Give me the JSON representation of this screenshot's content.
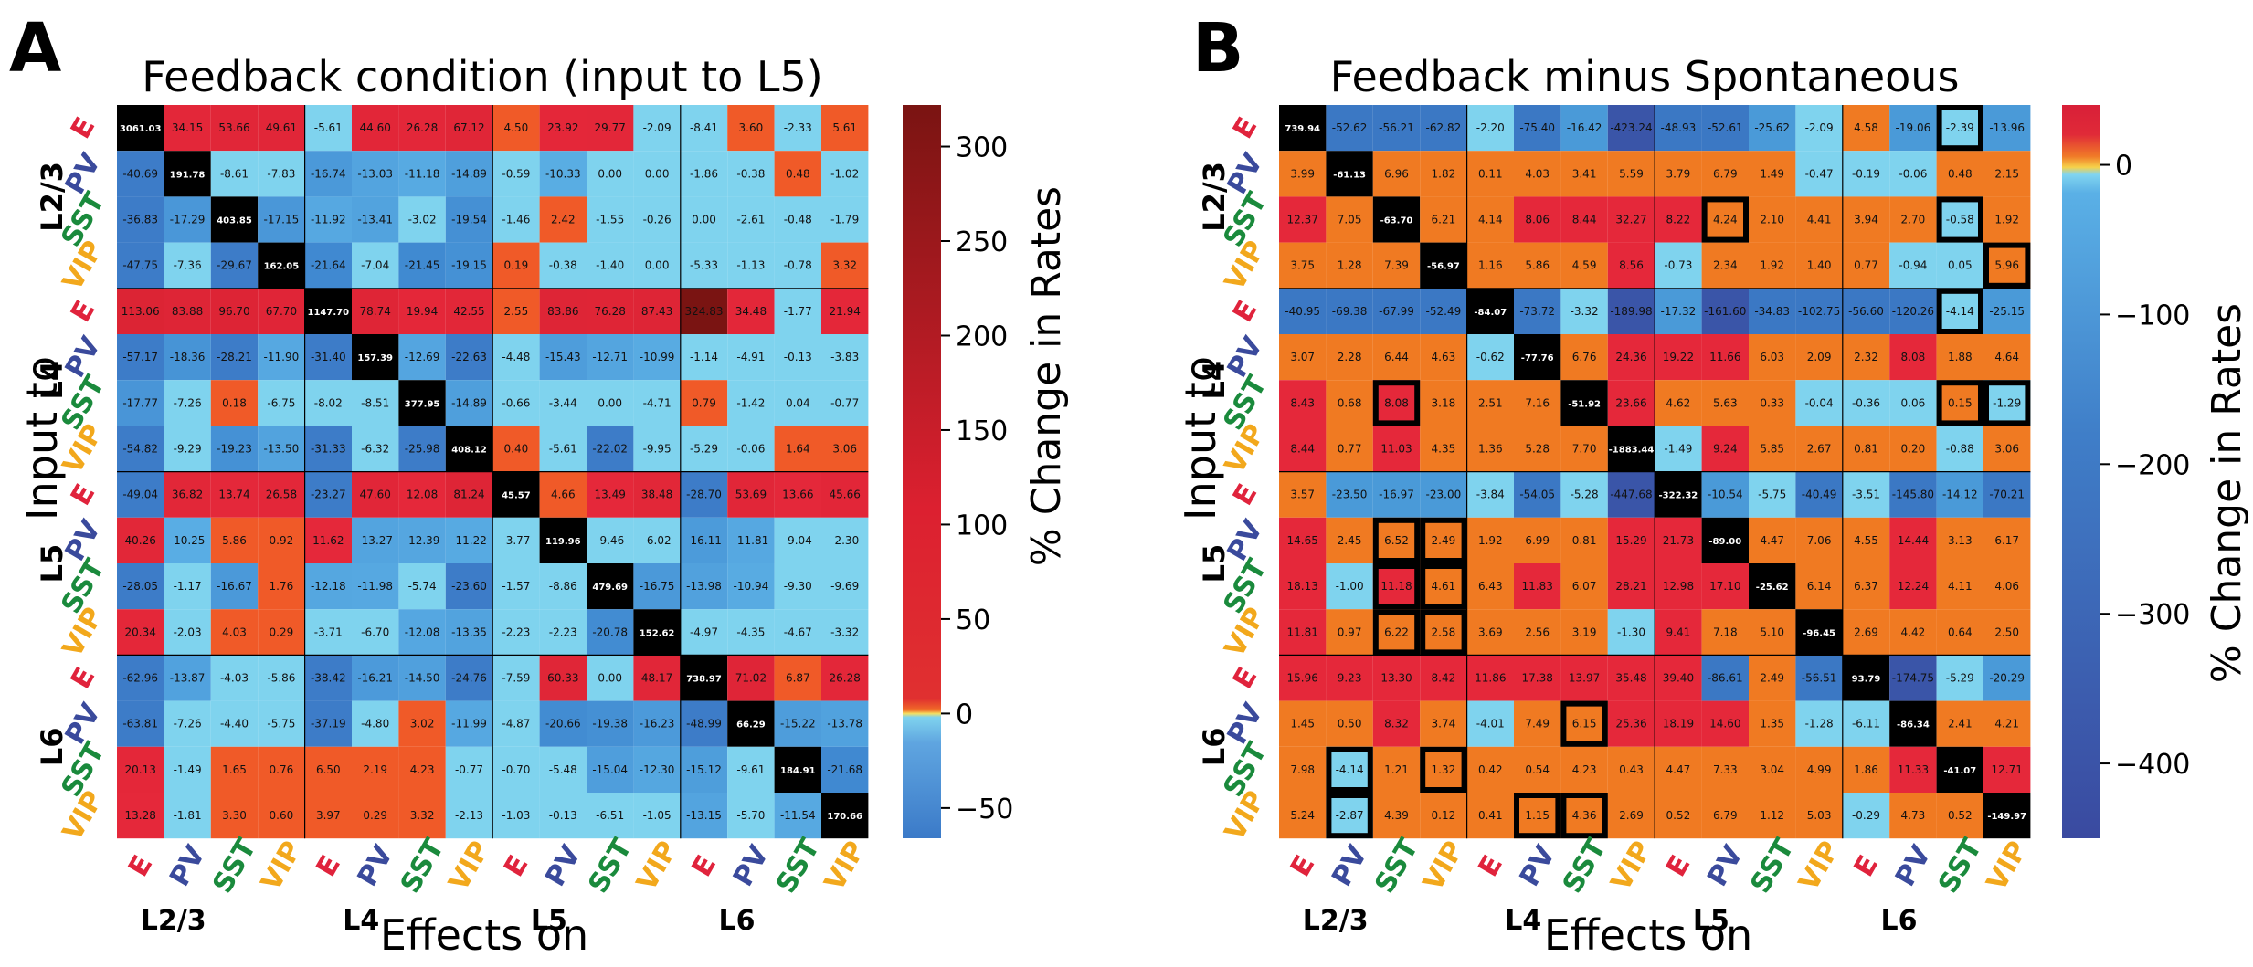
{
  "panel_letters": [
    "A",
    "B"
  ],
  "colorbar_label": "% Change in Rates",
  "row_axis_label": "Input to",
  "col_axis_label": "Effects on",
  "layers": [
    "L2/3",
    "L4",
    "L5",
    "L6"
  ],
  "cell_types": [
    "E",
    "PV",
    "SST",
    "VIP"
  ],
  "cell_type_colors": {
    "E": "#e0233c",
    "PV": "#3a4a9c",
    "SST": "#1a8a3c",
    "VIP": "#f2a81c"
  },
  "chart_data": [
    {
      "type": "heatmap",
      "title": "Feedback condition (input to L5)",
      "xlabel": "Effects on",
      "ylabel": "Input to",
      "colorbar": {
        "label": "% Change in Rates",
        "ticks": [
          -50,
          0,
          50,
          100,
          150,
          200,
          250,
          300
        ],
        "range": [
          -66,
          322
        ]
      },
      "highlighted_cells": [],
      "values": [
        [
          "3061.03",
          "34.15",
          "53.66",
          "49.61",
          "-5.61",
          "44.60",
          "26.28",
          "67.12",
          "4.50",
          "23.92",
          "29.77",
          "-2.09",
          "-8.41",
          "3.60",
          "-2.33",
          "5.61"
        ],
        [
          "-40.69",
          "191.78",
          "-8.61",
          "-7.83",
          "-16.74",
          "-13.03",
          "-11.18",
          "-14.89",
          "-0.59",
          "-10.33",
          "0.00",
          "0.00",
          "-1.86",
          "-0.38",
          "0.48",
          "-1.02"
        ],
        [
          "-36.83",
          "-17.29",
          "403.85",
          "-17.15",
          "-11.92",
          "-13.41",
          "-3.02",
          "-19.54",
          "-1.46",
          "2.42",
          "-1.55",
          "-0.26",
          "0.00",
          "-2.61",
          "-0.48",
          "-1.79"
        ],
        [
          "-47.75",
          "-7.36",
          "-29.67",
          "162.05",
          "-21.64",
          "-7.04",
          "-21.45",
          "-19.15",
          "0.19",
          "-0.38",
          "-1.40",
          "0.00",
          "-5.33",
          "-1.13",
          "-0.78",
          "3.32"
        ],
        [
          "113.06",
          "83.88",
          "96.70",
          "67.70",
          "1147.70",
          "78.74",
          "19.94",
          "42.55",
          "2.55",
          "83.86",
          "76.28",
          "87.43",
          "324.83",
          "34.48",
          "-1.77",
          "21.94"
        ],
        [
          "-57.17",
          "-18.36",
          "-28.21",
          "-11.90",
          "-31.40",
          "157.39",
          "-12.69",
          "-22.63",
          "-4.48",
          "-15.43",
          "-12.71",
          "-10.99",
          "-1.14",
          "-4.91",
          "-0.13",
          "-3.83"
        ],
        [
          "-17.77",
          "-7.26",
          "0.18",
          "-6.75",
          "-8.02",
          "-8.51",
          "377.95",
          "-14.89",
          "-0.66",
          "-3.44",
          "0.00",
          "-4.71",
          "0.79",
          "-1.42",
          "0.04",
          "-0.77"
        ],
        [
          "-54.82",
          "-9.29",
          "-19.23",
          "-13.50",
          "-31.33",
          "-6.32",
          "-25.98",
          "408.12",
          "0.40",
          "-5.61",
          "-22.02",
          "-9.95",
          "-5.29",
          "-0.06",
          "1.64",
          "3.06"
        ],
        [
          "-49.04",
          "36.82",
          "13.74",
          "26.58",
          "-23.27",
          "47.60",
          "12.08",
          "81.24",
          "45.57",
          "4.66",
          "13.49",
          "38.48",
          "-28.70",
          "53.69",
          "13.66",
          "45.66"
        ],
        [
          "40.26",
          "-10.25",
          "5.86",
          "0.92",
          "11.62",
          "-13.27",
          "-12.39",
          "-11.22",
          "-3.77",
          "119.96",
          "-9.46",
          "-6.02",
          "-16.11",
          "-11.81",
          "-9.04",
          "-2.30"
        ],
        [
          "-28.05",
          "-1.17",
          "-16.67",
          "1.76",
          "-12.18",
          "-11.98",
          "-5.74",
          "-23.60",
          "-1.57",
          "-8.86",
          "479.69",
          "-16.75",
          "-13.98",
          "-10.94",
          "-9.30",
          "-9.69"
        ],
        [
          "20.34",
          "-2.03",
          "4.03",
          "0.29",
          "-3.71",
          "-6.70",
          "-12.08",
          "-13.35",
          "-2.23",
          "-2.23",
          "-20.78",
          "152.62",
          "-4.97",
          "-4.35",
          "-4.67",
          "-3.32"
        ],
        [
          "-62.96",
          "-13.87",
          "-4.03",
          "-5.86",
          "-38.42",
          "-16.21",
          "-14.50",
          "-24.76",
          "-7.59",
          "60.33",
          "0.00",
          "48.17",
          "738.97",
          "71.02",
          "6.87",
          "26.28"
        ],
        [
          "-63.81",
          "-7.26",
          "-4.40",
          "-5.75",
          "-37.19",
          "-4.80",
          "3.02",
          "-11.99",
          "-4.87",
          "-20.66",
          "-19.38",
          "-16.23",
          "-48.99",
          "66.29",
          "-15.22",
          "-13.78"
        ],
        [
          "20.13",
          "-1.49",
          "1.65",
          "0.76",
          "6.50",
          "2.19",
          "4.23",
          "-0.77",
          "-0.70",
          "-5.48",
          "-15.04",
          "-12.30",
          "-15.12",
          "-9.61",
          "184.91",
          "-21.68"
        ],
        [
          "13.28",
          "-1.81",
          "3.30",
          "0.60",
          "3.97",
          "0.29",
          "3.32",
          "-2.13",
          "-1.03",
          "-0.13",
          "-6.51",
          "-1.05",
          "-13.15",
          "-5.70",
          "-11.54",
          "170.66"
        ]
      ]
    },
    {
      "type": "heatmap",
      "title": "Feedback minus Spontaneous",
      "xlabel": "Effects on",
      "ylabel": "Input to",
      "colorbar": {
        "label": "% Change in Rates",
        "ticks": [
          -400,
          -300,
          -200,
          -100,
          0
        ],
        "range": [
          -450,
          40
        ]
      },
      "highlighted_cells": [
        [
          0,
          14
        ],
        [
          2,
          9
        ],
        [
          2,
          14
        ],
        [
          3,
          15
        ],
        [
          4,
          14
        ],
        [
          6,
          2
        ],
        [
          6,
          14
        ],
        [
          6,
          15
        ],
        [
          9,
          2
        ],
        [
          9,
          3
        ],
        [
          10,
          2
        ],
        [
          10,
          3
        ],
        [
          11,
          2
        ],
        [
          11,
          3
        ],
        [
          13,
          6
        ],
        [
          14,
          1
        ],
        [
          14,
          3
        ],
        [
          15,
          1
        ],
        [
          15,
          5
        ],
        [
          15,
          6
        ]
      ],
      "values": [
        [
          "739.94",
          "-52.62",
          "-56.21",
          "-62.82",
          "-2.20",
          "-75.40",
          "-16.42",
          "-423.24",
          "-48.93",
          "-52.61",
          "-25.62",
          "-2.09",
          "4.58",
          "-19.06",
          "-2.39",
          "-13.96"
        ],
        [
          "3.99",
          "-61.13",
          "6.96",
          "1.82",
          "0.11",
          "4.03",
          "3.41",
          "5.59",
          "3.79",
          "6.79",
          "1.49",
          "-0.47",
          "-0.19",
          "-0.06",
          "0.48",
          "2.15"
        ],
        [
          "12.37",
          "7.05",
          "-63.70",
          "6.21",
          "4.14",
          "8.06",
          "8.44",
          "32.27",
          "8.22",
          "4.24",
          "2.10",
          "4.41",
          "3.94",
          "2.70",
          "-0.58",
          "1.92"
        ],
        [
          "3.75",
          "1.28",
          "7.39",
          "-56.97",
          "1.16",
          "5.86",
          "4.59",
          "8.56",
          "-0.73",
          "2.34",
          "1.92",
          "1.40",
          "0.77",
          "-0.94",
          "0.05",
          "5.96"
        ],
        [
          "-40.95",
          "-69.38",
          "-67.99",
          "-52.49",
          "-84.07",
          "-73.72",
          "-3.32",
          "-189.98",
          "-17.32",
          "-161.60",
          "-34.83",
          "-102.75",
          "-56.60",
          "-120.26",
          "-4.14",
          "-25.15"
        ],
        [
          "3.07",
          "2.28",
          "6.44",
          "4.63",
          "-0.62",
          "-77.76",
          "6.76",
          "24.36",
          "19.22",
          "11.66",
          "6.03",
          "2.09",
          "2.32",
          "8.08",
          "1.88",
          "4.64"
        ],
        [
          "8.43",
          "0.68",
          "8.08",
          "3.18",
          "2.51",
          "7.16",
          "-51.92",
          "23.66",
          "4.62",
          "5.63",
          "0.33",
          "-0.04",
          "-0.36",
          "0.06",
          "0.15",
          "-1.29"
        ],
        [
          "8.44",
          "0.77",
          "11.03",
          "4.35",
          "1.36",
          "5.28",
          "7.70",
          "-1883.44",
          "-1.49",
          "9.24",
          "5.85",
          "2.67",
          "0.81",
          "0.20",
          "-0.88",
          "3.06"
        ],
        [
          "3.57",
          "-23.50",
          "-16.97",
          "-23.00",
          "-3.84",
          "-54.05",
          "-5.28",
          "-447.68",
          "-322.32",
          "-10.54",
          "-5.75",
          "-40.49",
          "-3.51",
          "-145.80",
          "-14.12",
          "-70.21"
        ],
        [
          "14.65",
          "2.45",
          "6.52",
          "2.49",
          "1.92",
          "6.99",
          "0.81",
          "15.29",
          "21.73",
          "-89.00",
          "4.47",
          "7.06",
          "4.55",
          "14.44",
          "3.13",
          "6.17"
        ],
        [
          "18.13",
          "-1.00",
          "11.18",
          "4.61",
          "6.43",
          "11.83",
          "6.07",
          "28.21",
          "12.98",
          "17.10",
          "-25.62",
          "6.14",
          "6.37",
          "12.24",
          "4.11",
          "4.06"
        ],
        [
          "11.81",
          "0.97",
          "6.22",
          "2.58",
          "3.69",
          "2.56",
          "3.19",
          "-1.30",
          "9.41",
          "7.18",
          "5.10",
          "-96.45",
          "2.69",
          "4.42",
          "0.64",
          "2.50"
        ],
        [
          "15.96",
          "9.23",
          "13.30",
          "8.42",
          "11.86",
          "17.38",
          "13.97",
          "35.48",
          "39.40",
          "-86.61",
          "2.49",
          "-56.51",
          "93.79",
          "-174.75",
          "-5.29",
          "-20.29"
        ],
        [
          "1.45",
          "0.50",
          "8.32",
          "3.74",
          "-4.01",
          "7.49",
          "6.15",
          "25.36",
          "18.19",
          "14.60",
          "1.35",
          "-1.28",
          "-6.11",
          "-86.34",
          "2.41",
          "4.21"
        ],
        [
          "7.98",
          "-4.14",
          "1.21",
          "1.32",
          "0.42",
          "0.54",
          "4.23",
          "0.43",
          "4.47",
          "7.33",
          "3.04",
          "4.99",
          "1.86",
          "11.33",
          "-41.07",
          "12.71"
        ],
        [
          "5.24",
          "-2.87",
          "4.39",
          "0.12",
          "0.41",
          "1.15",
          "4.36",
          "2.69",
          "0.52",
          "6.79",
          "1.12",
          "5.03",
          "-0.29",
          "4.73",
          "0.52",
          "-149.97"
        ]
      ]
    }
  ]
}
